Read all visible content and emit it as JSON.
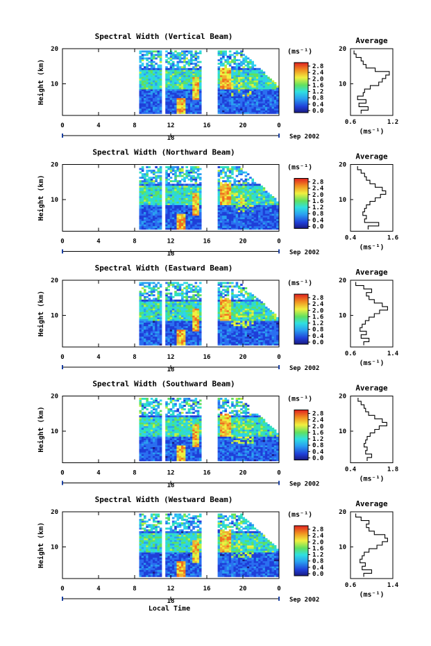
{
  "figure": {
    "x_axis_label": "Local Time",
    "date_label": "Sep 2002",
    "date_marker": "18"
  },
  "chart_data": [
    {
      "type": "heatmap",
      "title": "Spectral Width (Vertical Beam)",
      "ylabel": "Height (km)",
      "xlabel": "Local Time",
      "x_ticks": [
        "0",
        "4",
        "8",
        "12",
        "16",
        "20",
        "0"
      ],
      "y_ticks": [
        "20",
        "10"
      ],
      "xlim": [
        0,
        24
      ],
      "ylim": [
        1,
        20
      ],
      "colorbar_unit": "(ms⁻¹)",
      "colorbar_ticks": [
        "2.8",
        "2.4",
        "2.0",
        "1.6",
        "1.2",
        "0.8",
        "0.4",
        "0.0"
      ],
      "data_segments_hours": [
        [
          8.5,
          10.8
        ],
        [
          11.4,
          15.4
        ],
        [
          17.2,
          23.8
        ]
      ],
      "average_profile": {
        "title": "Average",
        "xlabel": "(ms⁻¹)",
        "x_ticks": [
          "0.6",
          "1.2"
        ],
        "xlim": [
          0.6,
          1.2
        ],
        "y_ticks": [
          "20",
          "10"
        ],
        "height_km": [
          2,
          3,
          4,
          5,
          6,
          7,
          8,
          9,
          10,
          11,
          12,
          13,
          14,
          15,
          16,
          17,
          18,
          19
        ],
        "value": [
          0.75,
          0.85,
          0.72,
          0.82,
          0.7,
          0.78,
          0.8,
          0.88,
          1.0,
          1.05,
          1.1,
          1.15,
          0.95,
          0.82,
          0.78,
          0.75,
          0.68,
          0.65
        ]
      }
    },
    {
      "type": "heatmap",
      "title": "Spectral Width (Northward Beam)",
      "ylabel": "Height (km)",
      "xlabel": "Local Time",
      "x_ticks": [
        "0",
        "4",
        "8",
        "12",
        "16",
        "20",
        "0"
      ],
      "y_ticks": [
        "20",
        "10"
      ],
      "xlim": [
        0,
        24
      ],
      "ylim": [
        1,
        20
      ],
      "colorbar_unit": "(ms⁻¹)",
      "colorbar_ticks": [
        "2.8",
        "2.4",
        "2.0",
        "1.6",
        "1.2",
        "0.8",
        "0.4",
        "0.0"
      ],
      "data_segments_hours": [
        [
          8.5,
          10.8
        ],
        [
          11.4,
          15.4
        ],
        [
          17.2,
          23.8
        ]
      ],
      "average_profile": {
        "title": "Average",
        "xlabel": "(ms⁻¹)",
        "x_ticks": [
          "0.4",
          "1.6"
        ],
        "xlim": [
          0.4,
          1.6
        ],
        "y_ticks": [
          "20",
          "10"
        ],
        "height_km": [
          2,
          3,
          4,
          5,
          6,
          7,
          8,
          9,
          10,
          11,
          12,
          13,
          14,
          15,
          16,
          17,
          18,
          19
        ],
        "value": [
          0.9,
          1.2,
          0.8,
          0.85,
          0.75,
          0.8,
          0.85,
          0.95,
          1.1,
          1.25,
          1.4,
          1.3,
          1.1,
          0.95,
          0.85,
          0.8,
          0.7,
          0.6
        ]
      }
    },
    {
      "type": "heatmap",
      "title": "Spectral Width (Eastward Beam)",
      "ylabel": "Height (km)",
      "xlabel": "Local Time",
      "x_ticks": [
        "0",
        "4",
        "8",
        "12",
        "16",
        "20",
        "0"
      ],
      "y_ticks": [
        "20",
        "10"
      ],
      "xlim": [
        0,
        24
      ],
      "ylim": [
        1,
        20
      ],
      "colorbar_unit": "(ms⁻¹)",
      "colorbar_ticks": [
        "2.8",
        "2.4",
        "2.0",
        "1.6",
        "1.2",
        "0.8",
        "0.4",
        "0.0"
      ],
      "data_segments_hours": [
        [
          8.5,
          10.8
        ],
        [
          11.4,
          15.4
        ],
        [
          17.2,
          23.8
        ]
      ],
      "average_profile": {
        "title": "Average",
        "xlabel": "(ms⁻¹)",
        "x_ticks": [
          "0.6",
          "1.4"
        ],
        "xlim": [
          0.6,
          1.4
        ],
        "y_ticks": [
          "20",
          "10"
        ],
        "height_km": [
          2,
          3,
          4,
          5,
          6,
          7,
          8,
          9,
          10,
          11,
          12,
          13,
          14,
          15,
          16,
          17,
          18,
          19
        ],
        "value": [
          0.85,
          0.95,
          0.8,
          0.9,
          0.78,
          0.82,
          0.88,
          0.95,
          1.05,
          1.15,
          1.3,
          1.2,
          1.05,
          0.95,
          0.9,
          1.0,
          0.85,
          0.7
        ]
      }
    },
    {
      "type": "heatmap",
      "title": "Spectral Width (Southward Beam)",
      "ylabel": "Height (km)",
      "xlabel": "Local Time",
      "x_ticks": [
        "0",
        "4",
        "8",
        "12",
        "16",
        "20",
        "0"
      ],
      "y_ticks": [
        "20",
        "10"
      ],
      "xlim": [
        0,
        24
      ],
      "ylim": [
        1,
        20
      ],
      "colorbar_unit": "(ms⁻¹)",
      "colorbar_ticks": [
        "2.8",
        "2.4",
        "2.0",
        "1.6",
        "1.2",
        "0.8",
        "0.4",
        "0.0"
      ],
      "data_segments_hours": [
        [
          8.5,
          10.8
        ],
        [
          11.4,
          15.4
        ],
        [
          17.2,
          23.8
        ]
      ],
      "average_profile": {
        "title": "Average",
        "xlabel": "(ms⁻¹)",
        "x_ticks": [
          "0.4",
          "1.8"
        ],
        "xlim": [
          0.4,
          1.8
        ],
        "y_ticks": [
          "20",
          "10"
        ],
        "height_km": [
          2,
          3,
          4,
          5,
          6,
          7,
          8,
          9,
          10,
          11,
          12,
          13,
          14,
          15,
          16,
          17,
          18,
          19
        ],
        "value": [
          0.95,
          1.1,
          0.9,
          0.95,
          0.85,
          0.9,
          0.95,
          1.05,
          1.2,
          1.35,
          1.6,
          1.45,
          1.2,
          1.0,
          0.9,
          0.85,
          0.75,
          0.65
        ]
      }
    },
    {
      "type": "heatmap",
      "title": "Spectral Width (Westward Beam)",
      "ylabel": "Height (km)",
      "xlabel": "Local Time",
      "x_ticks": [
        "0",
        "4",
        "8",
        "12",
        "16",
        "20",
        "0"
      ],
      "y_ticks": [
        "20",
        "10"
      ],
      "xlim": [
        0,
        24
      ],
      "ylim": [
        1,
        20
      ],
      "colorbar_unit": "(ms⁻¹)",
      "colorbar_ticks": [
        "2.8",
        "2.4",
        "2.0",
        "1.6",
        "1.2",
        "0.8",
        "0.4",
        "0.0"
      ],
      "data_segments_hours": [
        [
          8.5,
          10.8
        ],
        [
          11.4,
          15.4
        ],
        [
          17.2,
          23.8
        ]
      ],
      "average_profile": {
        "title": "Average",
        "xlabel": "(ms⁻¹)",
        "x_ticks": [
          "0.6",
          "1.4"
        ],
        "xlim": [
          0.6,
          1.4
        ],
        "y_ticks": [
          "20",
          "10"
        ],
        "height_km": [
          2,
          3,
          4,
          5,
          6,
          7,
          8,
          9,
          10,
          11,
          12,
          13,
          14,
          15,
          16,
          17,
          18,
          19
        ],
        "value": [
          0.85,
          1.0,
          0.82,
          0.88,
          0.78,
          0.82,
          0.86,
          0.95,
          1.1,
          1.2,
          1.3,
          1.25,
          1.05,
          0.95,
          0.9,
          0.95,
          0.8,
          0.7
        ]
      }
    }
  ]
}
